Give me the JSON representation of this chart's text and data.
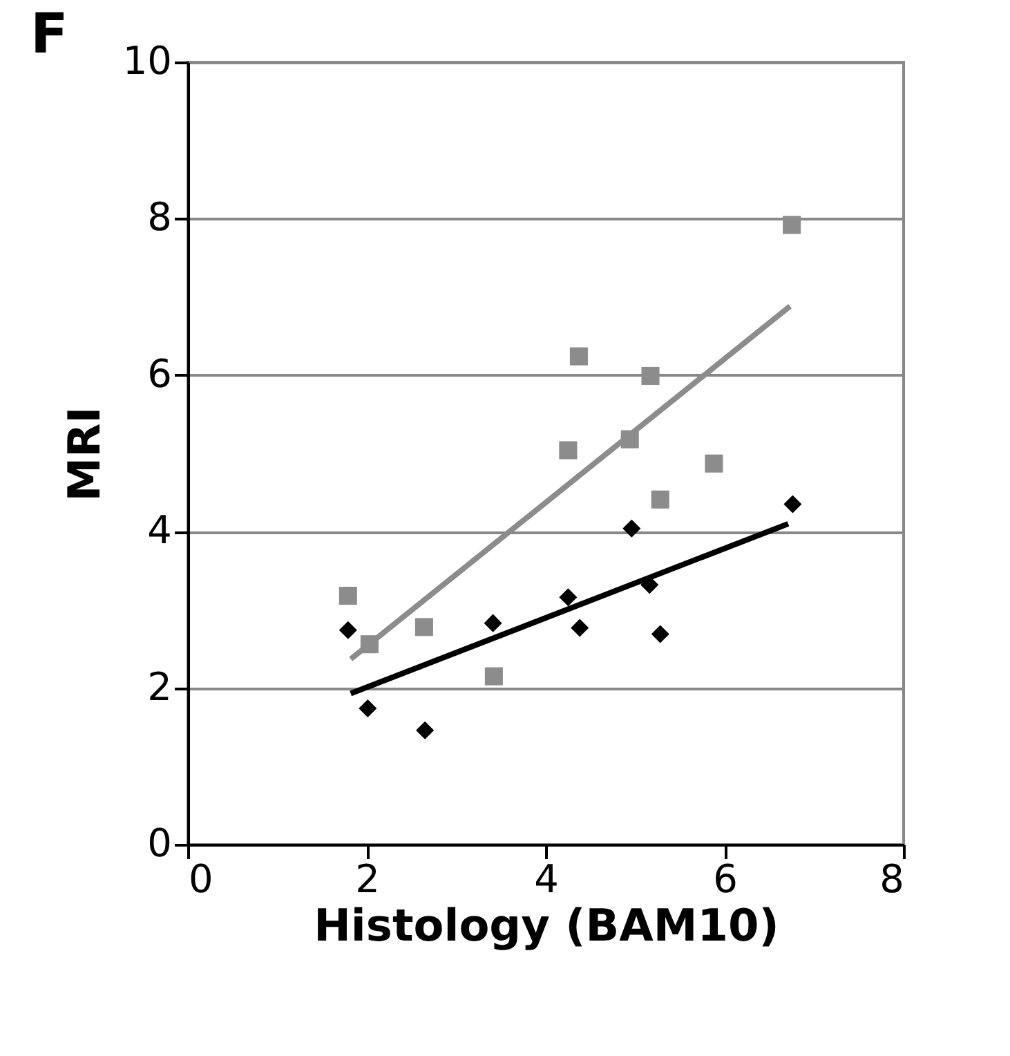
{
  "chart_data": {
    "type": "scatter",
    "xlabel": "Histology (BAM10)",
    "ylabel": "MRI",
    "annotations": [
      "F"
    ],
    "xlim": [
      0,
      8
    ],
    "xticks": [
      0,
      2,
      4,
      6,
      8
    ],
    "ylim": [
      0,
      10
    ],
    "yticks": [
      0,
      2,
      4,
      6,
      8,
      10
    ],
    "grid": "y",
    "series": [
      {
        "marker": "diamond",
        "color": "#000000",
        "x": [
          1.79,
          2.01,
          2.65,
          3.41,
          4.25,
          4.38,
          4.96,
          5.16,
          5.28,
          6.76
        ],
        "values": [
          2.74,
          1.74,
          1.46,
          2.83,
          3.16,
          2.77,
          4.04,
          3.32,
          2.69,
          4.35
        ]
      },
      {
        "marker": "square",
        "color": "#8c8c8c",
        "x": [
          1.79,
          2.03,
          2.64,
          3.42,
          4.25,
          4.37,
          4.94,
          5.17,
          5.28,
          5.88,
          6.75
        ],
        "values": [
          3.18,
          2.56,
          2.78,
          2.15,
          5.04,
          6.24,
          5.18,
          5.99,
          4.41,
          4.87,
          7.92
        ]
      },
      {
        "type": "line",
        "color": "#000000",
        "x": [
          1.82,
          6.71
        ],
        "values": [
          1.93,
          4.1
        ]
      },
      {
        "type": "line",
        "color": "#8c8c8c",
        "x": [
          1.82,
          6.73
        ],
        "values": [
          2.37,
          6.88
        ]
      }
    ]
  }
}
